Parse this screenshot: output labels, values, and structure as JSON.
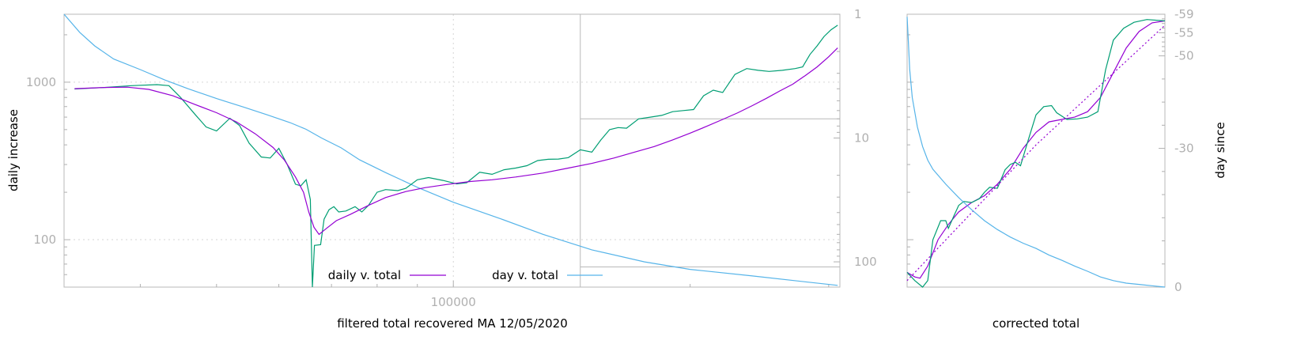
{
  "chart_data": [
    {
      "type": "line",
      "title": "",
      "xlabel": "filtered total recovered MA 12/05/2020",
      "ylabel": "daily increase",
      "y2label": "",
      "xscale": "log",
      "yscale": "log",
      "y2scale": "log-reversed",
      "xlim": [
        32000,
        310000
      ],
      "ylim": [
        50,
        2700
      ],
      "y2lim": [
        1,
        160
      ],
      "x_ticks": [
        {
          "value": 100000,
          "label": "100000"
        }
      ],
      "y_ticks": [
        {
          "value": 100,
          "label": "100"
        },
        {
          "value": 1000,
          "label": "1000"
        }
      ],
      "y2_ticks": [
        {
          "value": 1,
          "label": "1"
        },
        {
          "value": 10,
          "label": "10"
        },
        {
          "value": 100,
          "label": "100"
        }
      ],
      "grid": true,
      "legend_position": "bottom-center",
      "legend": [
        {
          "label": "daily v. total",
          "color": "#9400d3"
        },
        {
          "label": "day v. total",
          "color": "#56b4e9"
        }
      ],
      "reference_lines": {
        "x": 145000,
        "y2_levels": [
          7,
          110
        ]
      },
      "series": [
        {
          "name": "daily v. total",
          "color": "#9400d3",
          "axis": "y",
          "points": [
            [
              33000,
              910
            ],
            [
              36000,
              925
            ],
            [
              38500,
              930
            ],
            [
              41000,
              900
            ],
            [
              44000,
              820
            ],
            [
              47000,
              720
            ],
            [
              50000,
              640
            ],
            [
              53000,
              560
            ],
            [
              56000,
              470
            ],
            [
              59000,
              385
            ],
            [
              61000,
              320
            ],
            [
              63000,
              250
            ],
            [
              64500,
              200
            ],
            [
              65500,
              150
            ],
            [
              66500,
              120
            ],
            [
              67500,
              108
            ],
            [
              69000,
              118
            ],
            [
              71000,
              132
            ],
            [
              74000,
              145
            ],
            [
              78000,
              165
            ],
            [
              82000,
              185
            ],
            [
              87000,
              202
            ],
            [
              92000,
              214
            ],
            [
              98000,
              224
            ],
            [
              105000,
              234
            ],
            [
              112000,
              240
            ],
            [
              120000,
              250
            ],
            [
              130000,
              265
            ],
            [
              140000,
              285
            ],
            [
              150000,
              305
            ],
            [
              160000,
              330
            ],
            [
              170000,
              360
            ],
            [
              180000,
              390
            ],
            [
              190000,
              430
            ],
            [
              200000,
              475
            ],
            [
              210000,
              525
            ],
            [
              220000,
              580
            ],
            [
              230000,
              640
            ],
            [
              240000,
              710
            ],
            [
              250000,
              790
            ],
            [
              260000,
              880
            ],
            [
              270000,
              970
            ],
            [
              280000,
              1100
            ],
            [
              290000,
              1250
            ],
            [
              300000,
              1450
            ],
            [
              308000,
              1650
            ]
          ]
        },
        {
          "name": "",
          "color": "#009e73",
          "axis": "y",
          "points": [
            [
              33000,
              905
            ],
            [
              36000,
              925
            ],
            [
              39000,
              950
            ],
            [
              42000,
              965
            ],
            [
              43500,
              950
            ],
            [
              45000,
              800
            ],
            [
              47000,
              620
            ],
            [
              48500,
              520
            ],
            [
              50000,
              490
            ],
            [
              52000,
              590
            ],
            [
              53500,
              530
            ],
            [
              55000,
              410
            ],
            [
              57000,
              335
            ],
            [
              58500,
              330
            ],
            [
              60000,
              380
            ],
            [
              61500,
              300
            ],
            [
              63000,
              225
            ],
            [
              64000,
              220
            ],
            [
              65000,
              240
            ],
            [
              65800,
              180
            ],
            [
              66200,
              50
            ],
            [
              66600,
              92
            ],
            [
              67800,
              93
            ],
            [
              68500,
              135
            ],
            [
              69500,
              155
            ],
            [
              70500,
              162
            ],
            [
              71500,
              150
            ],
            [
              73000,
              152
            ],
            [
              75000,
              162
            ],
            [
              76500,
              150
            ],
            [
              78000,
              165
            ],
            [
              80000,
              200
            ],
            [
              82000,
              208
            ],
            [
              85000,
              205
            ],
            [
              87000,
              212
            ],
            [
              90000,
              240
            ],
            [
              93000,
              248
            ],
            [
              97000,
              238
            ],
            [
              101000,
              226
            ],
            [
              104000,
              230
            ],
            [
              108000,
              268
            ],
            [
              112000,
              260
            ],
            [
              116000,
              278
            ],
            [
              120000,
              285
            ],
            [
              124000,
              295
            ],
            [
              128000,
              318
            ],
            [
              132000,
              324
            ],
            [
              136000,
              325
            ],
            [
              140000,
              332
            ],
            [
              145000,
              372
            ],
            [
              150000,
              360
            ],
            [
              154000,
              430
            ],
            [
              158000,
              500
            ],
            [
              162000,
              515
            ],
            [
              166000,
              510
            ],
            [
              172000,
              585
            ],
            [
              178000,
              600
            ],
            [
              184000,
              615
            ],
            [
              190000,
              650
            ],
            [
              196000,
              660
            ],
            [
              202000,
              670
            ],
            [
              208000,
              820
            ],
            [
              214000,
              890
            ],
            [
              220000,
              860
            ],
            [
              228000,
              1120
            ],
            [
              236000,
              1220
            ],
            [
              244000,
              1190
            ],
            [
              252000,
              1170
            ],
            [
              262000,
              1190
            ],
            [
              272000,
              1220
            ],
            [
              278000,
              1250
            ],
            [
              284000,
              1500
            ],
            [
              290000,
              1700
            ],
            [
              296000,
              1950
            ],
            [
              302000,
              2150
            ],
            [
              308000,
              2300
            ]
          ]
        },
        {
          "name": "day v. total",
          "color": "#56b4e9",
          "axis": "y2",
          "points": [
            [
              32000,
              1
            ],
            [
              33500,
              1.4
            ],
            [
              35000,
              1.8
            ],
            [
              37000,
              2.3
            ],
            [
              40000,
              2.8
            ],
            [
              43000,
              3.4
            ],
            [
              46000,
              4
            ],
            [
              50000,
              4.8
            ],
            [
              54000,
              5.6
            ],
            [
              58000,
              6.5
            ],
            [
              62000,
              7.5
            ],
            [
              65000,
              8.5
            ],
            [
              68000,
              10
            ],
            [
              72000,
              12
            ],
            [
              76000,
              15
            ],
            [
              82000,
              19
            ],
            [
              90000,
              25
            ],
            [
              100000,
              33
            ],
            [
              115000,
              45
            ],
            [
              130000,
              60
            ],
            [
              150000,
              80
            ],
            [
              175000,
              100
            ],
            [
              200000,
              115
            ],
            [
              240000,
              130
            ],
            [
              280000,
              145
            ],
            [
              308000,
              155
            ]
          ]
        }
      ]
    },
    {
      "type": "line",
      "title": "",
      "xlabel": "corrected total",
      "ylabel": "",
      "y2label": "day since",
      "xscale": "linear",
      "yscale": "log",
      "y2scale": "reversed",
      "xlim": [
        0,
        1
      ],
      "ylim": [
        50,
        2700
      ],
      "y2lim": [
        0,
        -59
      ],
      "x_ticks": [],
      "y_ticks": [],
      "y2_ticks": [
        {
          "value": -59,
          "label": "-59"
        },
        {
          "value": -55,
          "label": "-55"
        },
        {
          "value": -50,
          "label": "-50"
        },
        {
          "value": -30,
          "label": "-30"
        },
        {
          "value": 0,
          "label": "0"
        }
      ],
      "grid": false,
      "series": [
        {
          "name": "",
          "color": "#9400d3",
          "axis": "y",
          "points": [
            [
              0.0,
              62
            ],
            [
              0.03,
              58
            ],
            [
              0.05,
              57
            ],
            [
              0.08,
              68
            ],
            [
              0.12,
              100
            ],
            [
              0.16,
              125
            ],
            [
              0.2,
              150
            ],
            [
              0.25,
              172
            ],
            [
              0.3,
              190
            ],
            [
              0.35,
              225
            ],
            [
              0.4,
              280
            ],
            [
              0.45,
              380
            ],
            [
              0.5,
              480
            ],
            [
              0.55,
              560
            ],
            [
              0.6,
              580
            ],
            [
              0.65,
              600
            ],
            [
              0.7,
              650
            ],
            [
              0.75,
              800
            ],
            [
              0.8,
              1150
            ],
            [
              0.85,
              1650
            ],
            [
              0.9,
              2100
            ],
            [
              0.95,
              2380
            ],
            [
              1.0,
              2450
            ]
          ]
        },
        {
          "name": "",
          "color": "#009e73",
          "axis": "y",
          "points": [
            [
              0.0,
              62
            ],
            [
              0.03,
              55
            ],
            [
              0.06,
              50
            ],
            [
              0.08,
              55
            ],
            [
              0.1,
              100
            ],
            [
              0.13,
              132
            ],
            [
              0.15,
              132
            ],
            [
              0.16,
              118
            ],
            [
              0.18,
              140
            ],
            [
              0.2,
              165
            ],
            [
              0.22,
              175
            ],
            [
              0.25,
              172
            ],
            [
              0.28,
              182
            ],
            [
              0.3,
              200
            ],
            [
              0.32,
              215
            ],
            [
              0.35,
              212
            ],
            [
              0.38,
              278
            ],
            [
              0.4,
              300
            ],
            [
              0.42,
              310
            ],
            [
              0.44,
              295
            ],
            [
              0.47,
              430
            ],
            [
              0.5,
              620
            ],
            [
              0.53,
              700
            ],
            [
              0.56,
              710
            ],
            [
              0.58,
              640
            ],
            [
              0.62,
              580
            ],
            [
              0.66,
              585
            ],
            [
              0.7,
              600
            ],
            [
              0.74,
              650
            ],
            [
              0.77,
              1200
            ],
            [
              0.8,
              1850
            ],
            [
              0.84,
              2200
            ],
            [
              0.88,
              2400
            ],
            [
              0.93,
              2500
            ],
            [
              1.0,
              2450
            ]
          ]
        },
        {
          "name": "",
          "color": "#9400d3",
          "axis": "y",
          "dashed": true,
          "points": [
            [
              0.0,
              55
            ],
            [
              0.5,
              400
            ],
            [
              1.0,
              2300
            ]
          ]
        },
        {
          "name": "",
          "color": "#56b4e9",
          "axis": "y",
          "points": [
            [
              0.0,
              2600
            ],
            [
              0.005,
              1800
            ],
            [
              0.01,
              1200
            ],
            [
              0.02,
              800
            ],
            [
              0.04,
              520
            ],
            [
              0.06,
              390
            ],
            [
              0.08,
              320
            ],
            [
              0.1,
              280
            ],
            [
              0.15,
              225
            ],
            [
              0.2,
              185
            ],
            [
              0.25,
              155
            ],
            [
              0.3,
              132
            ],
            [
              0.35,
              116
            ],
            [
              0.4,
              104
            ],
            [
              0.45,
              95
            ],
            [
              0.5,
              88
            ],
            [
              0.55,
              80
            ],
            [
              0.6,
              74
            ],
            [
              0.65,
              68
            ],
            [
              0.7,
              63
            ],
            [
              0.75,
              58
            ],
            [
              0.8,
              55
            ],
            [
              0.85,
              53
            ],
            [
              0.9,
              52
            ],
            [
              0.95,
              51
            ],
            [
              1.0,
              50
            ]
          ]
        }
      ]
    }
  ]
}
